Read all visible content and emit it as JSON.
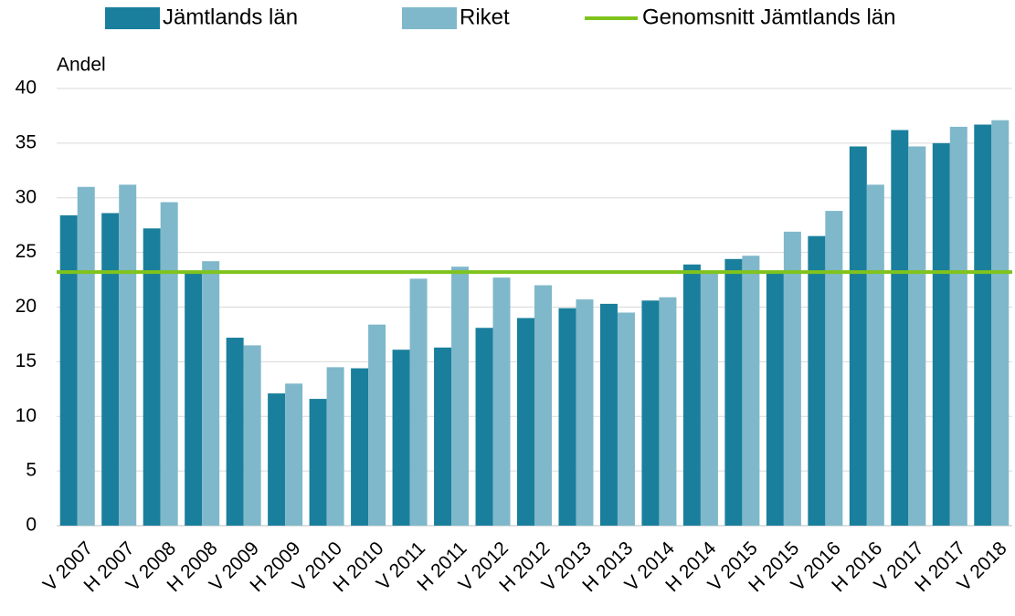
{
  "chart_data": {
    "type": "bar",
    "y_label": "Andel",
    "categories": [
      "V 2007",
      "H 2007",
      "V 2008",
      "H 2008",
      "V 2009",
      "H 2009",
      "V 2010",
      "H 2010",
      "V 2011",
      "H 2011",
      "V 2012",
      "H 2012",
      "V 2013",
      "H 2013",
      "V 2014",
      "H 2014",
      "V 2015",
      "H 2015",
      "V 2016",
      "H 2016",
      "V 2017",
      "H 2017",
      "V 2018"
    ],
    "series": [
      {
        "name": "Jämtlands län",
        "color": "#1a7f9c",
        "type": "bar",
        "values": [
          28.4,
          28.6,
          27.2,
          23.2,
          17.2,
          12.1,
          11.6,
          14.4,
          16.1,
          16.3,
          18.1,
          19.0,
          19.9,
          20.3,
          20.6,
          23.9,
          24.4,
          23.3,
          26.5,
          34.7,
          36.2,
          35.0,
          36.7
        ]
      },
      {
        "name": "Riket",
        "color": "#7fb8ca",
        "type": "bar",
        "values": [
          31.0,
          31.2,
          29.6,
          24.2,
          16.5,
          13.0,
          14.5,
          18.4,
          22.6,
          23.7,
          22.7,
          22.0,
          20.7,
          19.5,
          20.9,
          23.1,
          24.7,
          26.9,
          28.8,
          31.2,
          34.7,
          36.5,
          37.1
        ]
      },
      {
        "name": "Genomsnitt Jämtlands län",
        "color": "#7fc31c",
        "type": "line",
        "values": [
          23.2,
          23.2,
          23.2,
          23.2,
          23.2,
          23.2,
          23.2,
          23.2,
          23.2,
          23.2,
          23.2,
          23.2,
          23.2,
          23.2,
          23.2,
          23.2,
          23.2,
          23.2,
          23.2,
          23.2,
          23.2,
          23.2,
          23.2
        ]
      }
    ],
    "ylim": [
      0,
      40
    ],
    "yticks": [
      0,
      5,
      10,
      15,
      20,
      25,
      30,
      35,
      40
    ],
    "grid": true,
    "legend": "top"
  }
}
